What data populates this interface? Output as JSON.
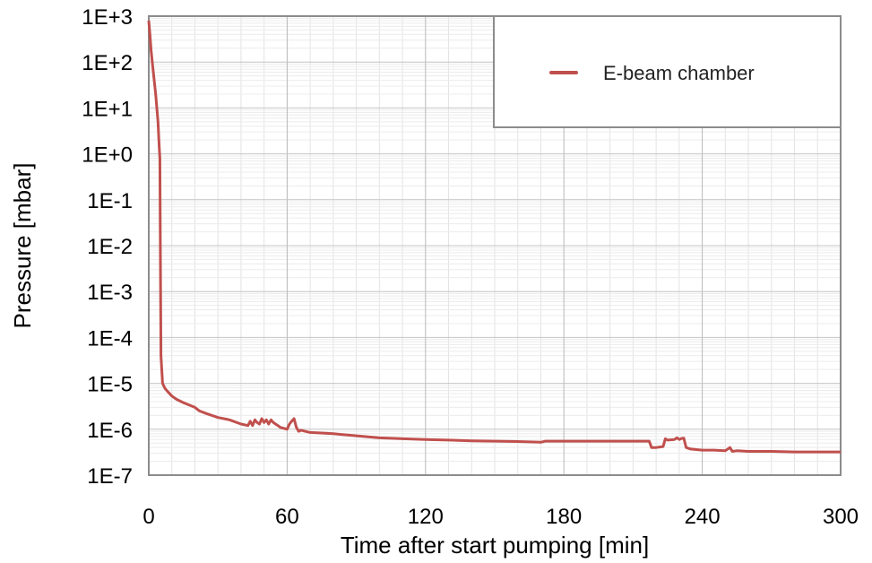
{
  "chart_data": {
    "type": "line",
    "title": "",
    "xlabel": "Time after start pumping [min]",
    "ylabel": "Pressure [mbar]",
    "xlim": [
      0,
      300
    ],
    "ylim": [
      1e-07,
      1000
    ],
    "yscale": "log",
    "grid": true,
    "legend_position": "top-right",
    "x_ticks": [
      0,
      60,
      120,
      180,
      240,
      300
    ],
    "x_tick_labels": [
      "0",
      "60",
      "120",
      "180",
      "240",
      "300"
    ],
    "y_ticks": [
      1000,
      100,
      10,
      1,
      0.1,
      0.01,
      0.001,
      0.0001,
      1e-05,
      1e-06,
      1e-07
    ],
    "y_tick_labels": [
      "1E+3",
      "1E+2",
      "1E+1",
      "1E+0",
      "1E-1",
      "1E-2",
      "1E-3",
      "1E-4",
      "1E-5",
      "1E-6",
      "1E-7"
    ],
    "series": [
      {
        "name": "E-beam chamber",
        "color": "#c0504d",
        "x": [
          0,
          0.5,
          1,
          1.5,
          2,
          3,
          4,
          4.5,
          4.8,
          5,
          5.3,
          6,
          7,
          8,
          10,
          12,
          15,
          20,
          22,
          25,
          30,
          35,
          40,
          43,
          44,
          45,
          46,
          47,
          48,
          49,
          50,
          51,
          52,
          53,
          54,
          55,
          56,
          57,
          60,
          61,
          62,
          63,
          64,
          65,
          66,
          70,
          80,
          90,
          100,
          110,
          120,
          130,
          140,
          150,
          160,
          170,
          172,
          175,
          180,
          190,
          200,
          210,
          217,
          218,
          220,
          223,
          224,
          225,
          228,
          229,
          230,
          231,
          232,
          233,
          235,
          240,
          245,
          250,
          252,
          253,
          255,
          260,
          270,
          280,
          290,
          300
        ],
        "y": [
          800,
          400,
          180,
          100,
          60,
          20,
          5,
          1.5,
          0.8,
          0.01,
          4e-05,
          1e-05,
          7.8e-06,
          6.8e-06,
          5.3e-06,
          4.5e-06,
          3.8e-06,
          3e-06,
          2.5e-06,
          2.2e-06,
          1.8e-06,
          1.6e-06,
          1.3e-06,
          1.2e-06,
          1.5e-06,
          1.2e-06,
          1.6e-06,
          1.4e-06,
          1.3e-06,
          1.7e-06,
          1.4e-06,
          1.6e-06,
          1.3e-06,
          1.6e-06,
          1.4e-06,
          1.3e-06,
          1.2e-06,
          1.1e-06,
          1e-06,
          1.3e-06,
          1.5e-06,
          1.7e-06,
          1.1e-06,
          9e-07,
          9.5e-07,
          8.5e-07,
          8e-07,
          7.2e-07,
          6.5e-07,
          6.2e-07,
          6e-07,
          5.8e-07,
          5.6e-07,
          5.5e-07,
          5.4e-07,
          5.2e-07,
          5.5e-07,
          5.5e-07,
          5.5e-07,
          5.5e-07,
          5.5e-07,
          5.5e-07,
          5.5e-07,
          4e-07,
          4e-07,
          4.2e-07,
          6.2e-07,
          5.8e-07,
          6e-07,
          6.5e-07,
          6e-07,
          6.3e-07,
          6.4e-07,
          4e-07,
          3.7e-07,
          3.5e-07,
          3.5e-07,
          3.4e-07,
          4e-07,
          3.3e-07,
          3.4e-07,
          3.3e-07,
          3.3e-07,
          3.2e-07,
          3.2e-07,
          3.2e-07
        ]
      }
    ]
  }
}
